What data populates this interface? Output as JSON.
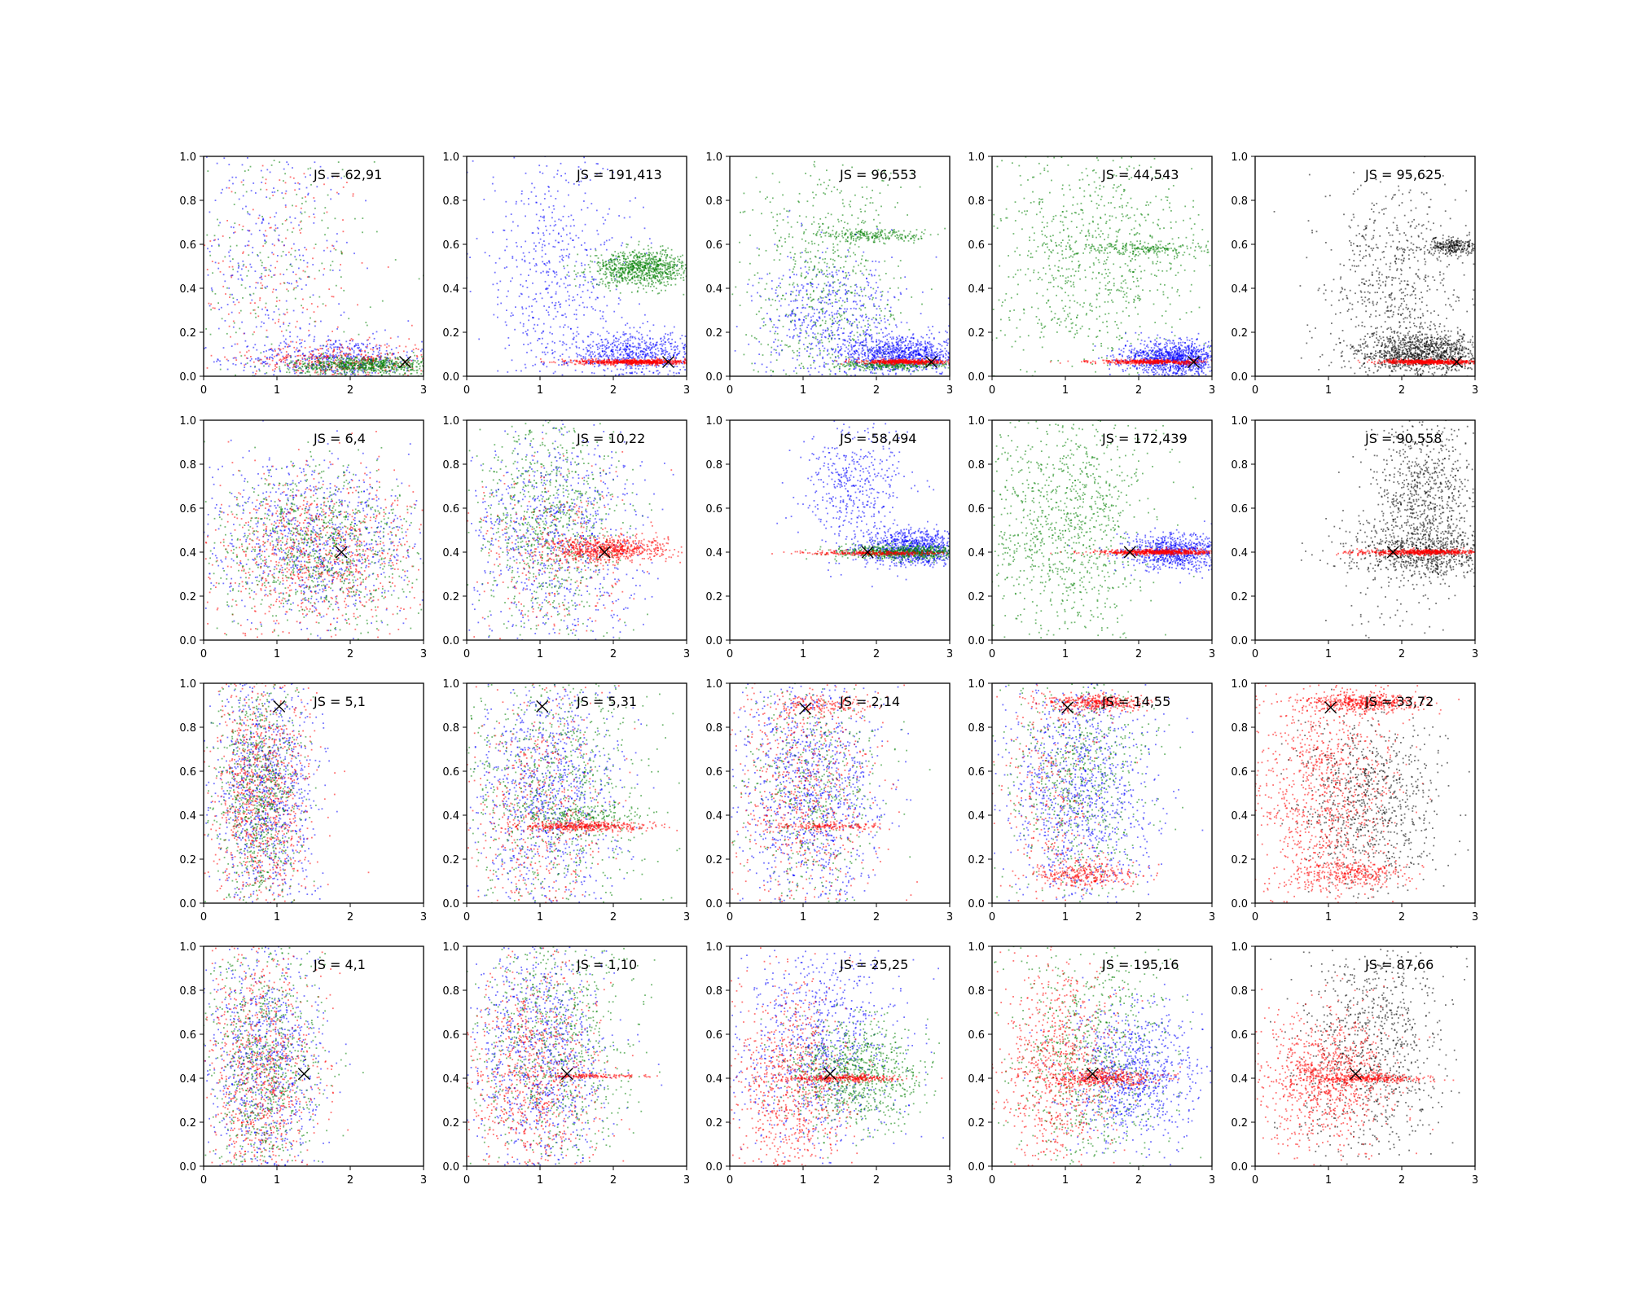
{
  "colors": {
    "blue": "#0000ff",
    "green": "#008000",
    "red": "#ff0000",
    "black": "#000000"
  },
  "chart_data": {
    "type": "scatter",
    "grid": false,
    "xlim": [
      0,
      3
    ],
    "ylim": [
      0,
      1
    ],
    "xticks": [
      "0",
      "1",
      "2",
      "3"
    ],
    "yticks": [
      "0.0",
      "0.2",
      "0.4",
      "0.6",
      "0.8",
      "1.0"
    ],
    "panels": [
      {
        "annotation": "JS = 62,91",
        "marker": [
          2.75,
          0.065
        ],
        "clusters": [
          {
            "c": "red",
            "n": 220,
            "cx": 0.9,
            "cy": 0.45,
            "sx": 0.7,
            "sy": 0.3
          },
          {
            "c": "blue",
            "n": 320,
            "cx": 0.8,
            "cy": 0.55,
            "sx": 0.6,
            "sy": 0.3
          },
          {
            "c": "green",
            "n": 220,
            "cx": 0.9,
            "cy": 0.5,
            "sx": 0.7,
            "sy": 0.3
          },
          {
            "c": "blue",
            "n": 500,
            "cx": 1.8,
            "cy": 0.08,
            "sx": 0.6,
            "sy": 0.05
          },
          {
            "c": "red",
            "n": 400,
            "cx": 1.9,
            "cy": 0.07,
            "sx": 0.6,
            "sy": 0.04
          },
          {
            "c": "green",
            "n": 700,
            "cx": 2.2,
            "cy": 0.05,
            "sx": 0.5,
            "sy": 0.02
          }
        ]
      },
      {
        "annotation": "JS = 191,413",
        "marker": [
          2.75,
          0.065
        ],
        "clusters": [
          {
            "c": "blue",
            "n": 600,
            "cx": 1.2,
            "cy": 0.45,
            "sx": 0.55,
            "sy": 0.3
          },
          {
            "c": "blue",
            "n": 700,
            "cx": 2.3,
            "cy": 0.1,
            "sx": 0.45,
            "sy": 0.05
          },
          {
            "c": "green",
            "n": 900,
            "cx": 2.4,
            "cy": 0.49,
            "sx": 0.35,
            "sy": 0.04
          },
          {
            "c": "red",
            "n": 700,
            "cx": 2.3,
            "cy": 0.065,
            "sx": 0.4,
            "sy": 0.006
          }
        ]
      },
      {
        "annotation": "JS = 96,553",
        "marker": [
          2.75,
          0.065
        ],
        "clusters": [
          {
            "c": "green",
            "n": 700,
            "cx": 1.3,
            "cy": 0.4,
            "sx": 0.55,
            "sy": 0.3
          },
          {
            "c": "green",
            "n": 220,
            "cx": 2.0,
            "cy": 0.64,
            "sx": 0.4,
            "sy": 0.015
          },
          {
            "c": "blue",
            "n": 600,
            "cx": 1.4,
            "cy": 0.25,
            "sx": 0.5,
            "sy": 0.15
          },
          {
            "c": "blue",
            "n": 900,
            "cx": 2.4,
            "cy": 0.1,
            "sx": 0.4,
            "sy": 0.04
          },
          {
            "c": "green",
            "n": 300,
            "cx": 2.2,
            "cy": 0.05,
            "sx": 0.4,
            "sy": 0.01
          },
          {
            "c": "red",
            "n": 500,
            "cx": 2.4,
            "cy": 0.065,
            "sx": 0.3,
            "sy": 0.005
          }
        ]
      },
      {
        "annotation": "JS = 44,543",
        "marker": [
          2.75,
          0.065
        ],
        "clusters": [
          {
            "c": "green",
            "n": 900,
            "cx": 1.4,
            "cy": 0.55,
            "sx": 0.7,
            "sy": 0.28
          },
          {
            "c": "green",
            "n": 200,
            "cx": 2.1,
            "cy": 0.58,
            "sx": 0.45,
            "sy": 0.015
          },
          {
            "c": "blue",
            "n": 1100,
            "cx": 2.5,
            "cy": 0.08,
            "sx": 0.35,
            "sy": 0.04
          },
          {
            "c": "red",
            "n": 450,
            "cx": 2.2,
            "cy": 0.065,
            "sx": 0.4,
            "sy": 0.005
          }
        ]
      },
      {
        "annotation": "JS = 95,625",
        "marker": [
          2.75,
          0.065
        ],
        "clusters": [
          {
            "c": "black",
            "n": 700,
            "cx": 1.9,
            "cy": 0.4,
            "sx": 0.45,
            "sy": 0.25
          },
          {
            "c": "black",
            "n": 1100,
            "cx": 2.3,
            "cy": 0.1,
            "sx": 0.45,
            "sy": 0.05
          },
          {
            "c": "black",
            "n": 280,
            "cx": 2.7,
            "cy": 0.59,
            "sx": 0.2,
            "sy": 0.02
          },
          {
            "c": "red",
            "n": 600,
            "cx": 2.4,
            "cy": 0.065,
            "sx": 0.35,
            "sy": 0.005
          }
        ]
      },
      {
        "annotation": "JS = 6,4",
        "marker": [
          1.88,
          0.4
        ],
        "clusters": [
          {
            "c": "blue",
            "n": 900,
            "cx": 1.5,
            "cy": 0.45,
            "sx": 0.7,
            "sy": 0.18
          },
          {
            "c": "red",
            "n": 900,
            "cx": 1.6,
            "cy": 0.4,
            "sx": 0.75,
            "sy": 0.18
          },
          {
            "c": "green",
            "n": 900,
            "cx": 1.5,
            "cy": 0.42,
            "sx": 0.7,
            "sy": 0.18
          }
        ]
      },
      {
        "annotation": "JS = 10,22",
        "marker": [
          1.88,
          0.4
        ],
        "clusters": [
          {
            "c": "green",
            "n": 900,
            "cx": 1.1,
            "cy": 0.55,
            "sx": 0.5,
            "sy": 0.28
          },
          {
            "c": "blue",
            "n": 800,
            "cx": 1.2,
            "cy": 0.45,
            "sx": 0.6,
            "sy": 0.25
          },
          {
            "c": "red",
            "n": 700,
            "cx": 1.9,
            "cy": 0.41,
            "sx": 0.4,
            "sy": 0.03
          },
          {
            "c": "red",
            "n": 300,
            "cx": 1.2,
            "cy": 0.4,
            "sx": 0.6,
            "sy": 0.2
          }
        ]
      },
      {
        "annotation": "JS = 58,494",
        "marker": [
          1.88,
          0.4
        ],
        "clusters": [
          {
            "c": "blue",
            "n": 450,
            "cx": 1.7,
            "cy": 0.7,
            "sx": 0.35,
            "sy": 0.15
          },
          {
            "c": "blue",
            "n": 900,
            "cx": 2.5,
            "cy": 0.42,
            "sx": 0.35,
            "sy": 0.04
          },
          {
            "c": "green",
            "n": 700,
            "cx": 2.4,
            "cy": 0.4,
            "sx": 0.45,
            "sy": 0.015
          },
          {
            "c": "red",
            "n": 300,
            "cx": 2.0,
            "cy": 0.395,
            "sx": 0.45,
            "sy": 0.005
          }
        ]
      },
      {
        "annotation": "JS = 172,439",
        "marker": [
          1.88,
          0.4
        ],
        "clusters": [
          {
            "c": "green",
            "n": 1100,
            "cx": 1.0,
            "cy": 0.55,
            "sx": 0.6,
            "sy": 0.28
          },
          {
            "c": "blue",
            "n": 800,
            "cx": 2.5,
            "cy": 0.4,
            "sx": 0.35,
            "sy": 0.04
          },
          {
            "c": "red",
            "n": 650,
            "cx": 2.3,
            "cy": 0.4,
            "sx": 0.4,
            "sy": 0.006
          }
        ]
      },
      {
        "annotation": "JS = 90,558",
        "marker": [
          1.88,
          0.4
        ],
        "clusters": [
          {
            "c": "black",
            "n": 700,
            "cx": 2.3,
            "cy": 0.65,
            "sx": 0.35,
            "sy": 0.15
          },
          {
            "c": "black",
            "n": 700,
            "cx": 2.4,
            "cy": 0.4,
            "sx": 0.45,
            "sy": 0.06
          },
          {
            "c": "black",
            "n": 150,
            "cx": 1.8,
            "cy": 0.3,
            "sx": 0.5,
            "sy": 0.2
          },
          {
            "c": "red",
            "n": 600,
            "cx": 2.3,
            "cy": 0.4,
            "sx": 0.45,
            "sy": 0.006
          }
        ]
      },
      {
        "annotation": "JS = 5,1",
        "marker": [
          1.03,
          0.895
        ],
        "clusters": [
          {
            "c": "blue",
            "n": 1000,
            "cx": 0.85,
            "cy": 0.5,
            "sx": 0.35,
            "sy": 0.28
          },
          {
            "c": "red",
            "n": 1000,
            "cx": 0.8,
            "cy": 0.5,
            "sx": 0.35,
            "sy": 0.28
          },
          {
            "c": "green",
            "n": 800,
            "cx": 0.75,
            "cy": 0.5,
            "sx": 0.3,
            "sy": 0.28
          }
        ]
      },
      {
        "annotation": "JS = 5,31",
        "marker": [
          1.03,
          0.895
        ],
        "clusters": [
          {
            "c": "blue",
            "n": 1000,
            "cx": 1.1,
            "cy": 0.5,
            "sx": 0.5,
            "sy": 0.28
          },
          {
            "c": "green",
            "n": 800,
            "cx": 1.2,
            "cy": 0.55,
            "sx": 0.6,
            "sy": 0.28
          },
          {
            "c": "red",
            "n": 500,
            "cx": 1.0,
            "cy": 0.45,
            "sx": 0.45,
            "sy": 0.28
          },
          {
            "c": "red",
            "n": 400,
            "cx": 1.6,
            "cy": 0.35,
            "sx": 0.45,
            "sy": 0.01
          },
          {
            "c": "green",
            "n": 150,
            "cx": 1.6,
            "cy": 0.4,
            "sx": 0.4,
            "sy": 0.02
          }
        ]
      },
      {
        "annotation": "JS = 2,14",
        "marker": [
          1.03,
          0.885
        ],
        "clusters": [
          {
            "c": "blue",
            "n": 1100,
            "cx": 1.1,
            "cy": 0.5,
            "sx": 0.5,
            "sy": 0.28
          },
          {
            "c": "red",
            "n": 700,
            "cx": 1.0,
            "cy": 0.5,
            "sx": 0.5,
            "sy": 0.28
          },
          {
            "c": "green",
            "n": 500,
            "cx": 1.1,
            "cy": 0.5,
            "sx": 0.5,
            "sy": 0.28
          },
          {
            "c": "red",
            "n": 150,
            "cx": 1.3,
            "cy": 0.35,
            "sx": 0.35,
            "sy": 0.008
          },
          {
            "c": "red",
            "n": 150,
            "cx": 1.3,
            "cy": 0.9,
            "sx": 0.35,
            "sy": 0.02
          }
        ]
      },
      {
        "annotation": "JS = 14,55",
        "marker": [
          1.03,
          0.89
        ],
        "clusters": [
          {
            "c": "blue",
            "n": 1100,
            "cx": 1.2,
            "cy": 0.5,
            "sx": 0.5,
            "sy": 0.28
          },
          {
            "c": "green",
            "n": 700,
            "cx": 1.2,
            "cy": 0.55,
            "sx": 0.5,
            "sy": 0.28
          },
          {
            "c": "red",
            "n": 400,
            "cx": 1.4,
            "cy": 0.91,
            "sx": 0.35,
            "sy": 0.02
          },
          {
            "c": "red",
            "n": 300,
            "cx": 1.3,
            "cy": 0.13,
            "sx": 0.35,
            "sy": 0.03
          },
          {
            "c": "red",
            "n": 300,
            "cx": 0.8,
            "cy": 0.5,
            "sx": 0.35,
            "sy": 0.28
          }
        ]
      },
      {
        "annotation": "JS = 33,72",
        "marker": [
          1.03,
          0.89
        ],
        "clusters": [
          {
            "c": "red",
            "n": 1100,
            "cx": 0.9,
            "cy": 0.5,
            "sx": 0.5,
            "sy": 0.28
          },
          {
            "c": "black",
            "n": 800,
            "cx": 1.6,
            "cy": 0.45,
            "sx": 0.45,
            "sy": 0.2
          },
          {
            "c": "red",
            "n": 500,
            "cx": 1.5,
            "cy": 0.91,
            "sx": 0.4,
            "sy": 0.02
          },
          {
            "c": "red",
            "n": 300,
            "cx": 1.3,
            "cy": 0.13,
            "sx": 0.4,
            "sy": 0.03
          }
        ]
      },
      {
        "annotation": "JS = 4,1",
        "marker": [
          1.37,
          0.42
        ],
        "clusters": [
          {
            "c": "blue",
            "n": 900,
            "cx": 0.8,
            "cy": 0.45,
            "sx": 0.4,
            "sy": 0.28
          },
          {
            "c": "red",
            "n": 900,
            "cx": 0.8,
            "cy": 0.4,
            "sx": 0.4,
            "sy": 0.28
          },
          {
            "c": "green",
            "n": 800,
            "cx": 0.8,
            "cy": 0.45,
            "sx": 0.4,
            "sy": 0.28
          }
        ]
      },
      {
        "annotation": "JS = 1,10",
        "marker": [
          1.37,
          0.42
        ],
        "clusters": [
          {
            "c": "blue",
            "n": 1000,
            "cx": 1.0,
            "cy": 0.5,
            "sx": 0.45,
            "sy": 0.28
          },
          {
            "c": "green",
            "n": 800,
            "cx": 1.2,
            "cy": 0.55,
            "sx": 0.55,
            "sy": 0.28
          },
          {
            "c": "red",
            "n": 800,
            "cx": 0.9,
            "cy": 0.4,
            "sx": 0.45,
            "sy": 0.25
          },
          {
            "c": "red",
            "n": 150,
            "cx": 1.6,
            "cy": 0.41,
            "sx": 0.4,
            "sy": 0.005
          }
        ]
      },
      {
        "annotation": "JS = 25,25",
        "marker": [
          1.37,
          0.42
        ],
        "clusters": [
          {
            "c": "blue",
            "n": 900,
            "cx": 1.2,
            "cy": 0.55,
            "sx": 0.55,
            "sy": 0.25
          },
          {
            "c": "green",
            "n": 900,
            "cx": 1.7,
            "cy": 0.42,
            "sx": 0.45,
            "sy": 0.12
          },
          {
            "c": "red",
            "n": 800,
            "cx": 0.8,
            "cy": 0.35,
            "sx": 0.4,
            "sy": 0.25
          },
          {
            "c": "red",
            "n": 300,
            "cx": 1.6,
            "cy": 0.4,
            "sx": 0.4,
            "sy": 0.008
          }
        ]
      },
      {
        "annotation": "JS = 195,16",
        "marker": [
          1.37,
          0.42
        ],
        "clusters": [
          {
            "c": "blue",
            "n": 900,
            "cx": 1.9,
            "cy": 0.42,
            "sx": 0.45,
            "sy": 0.15
          },
          {
            "c": "green",
            "n": 800,
            "cx": 1.3,
            "cy": 0.5,
            "sx": 0.55,
            "sy": 0.3
          },
          {
            "c": "red",
            "n": 800,
            "cx": 0.9,
            "cy": 0.45,
            "sx": 0.4,
            "sy": 0.25
          },
          {
            "c": "red",
            "n": 400,
            "cx": 1.5,
            "cy": 0.4,
            "sx": 0.4,
            "sy": 0.02
          }
        ]
      },
      {
        "annotation": "JS = 87,66",
        "marker": [
          1.37,
          0.42
        ],
        "clusters": [
          {
            "c": "black",
            "n": 900,
            "cx": 1.6,
            "cy": 0.55,
            "sx": 0.5,
            "sy": 0.28
          },
          {
            "c": "red",
            "n": 1000,
            "cx": 1.0,
            "cy": 0.4,
            "sx": 0.45,
            "sy": 0.15
          },
          {
            "c": "red",
            "n": 300,
            "cx": 1.5,
            "cy": 0.4,
            "sx": 0.4,
            "sy": 0.01
          }
        ]
      }
    ]
  }
}
